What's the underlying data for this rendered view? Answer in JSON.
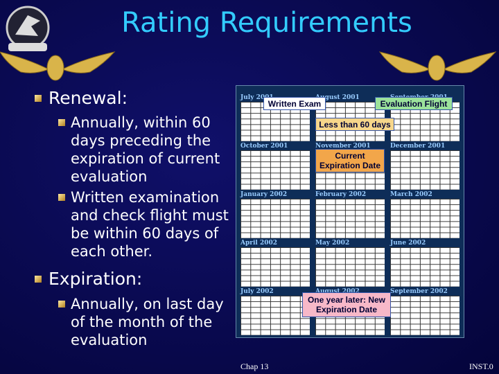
{
  "header": {
    "title": "Rating Requirements"
  },
  "bullets": [
    {
      "heading": "Renewal:",
      "items": [
        "Annually, within 60 days preceding the expiration of current evaluation",
        "Written examination and check flight must be within 60 days of each other."
      ]
    },
    {
      "heading": "Expiration:",
      "items": [
        "Annually, on last day of the month of the evaluation"
      ]
    }
  ],
  "calendar": {
    "months": [
      "July 2001",
      "August 2001",
      "September 2001",
      "October 2001",
      "November 2001",
      "December 2001",
      "January 2002",
      "February 2002",
      "March 2002",
      "April 2002",
      "May 2002",
      "June 2002",
      "July 2002",
      "August 2002",
      "September 2002"
    ],
    "callouts": {
      "written_exam": "Written Exam",
      "evaluation_flight": "Evaluation Flight",
      "less_than": "Less than 60 days",
      "current": "Current Expiration Date",
      "new": "One year later: New Expiration Date"
    }
  },
  "footer": {
    "chapter": "Chap 13",
    "right": "INST.0"
  }
}
